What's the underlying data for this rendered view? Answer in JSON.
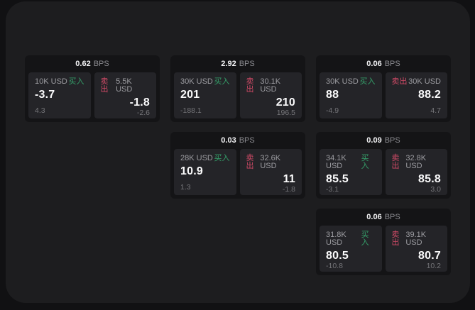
{
  "labels": {
    "buy": "买入",
    "sell": "卖出",
    "bps": "BPS"
  },
  "colors": {
    "background_outer": "#111113",
    "background_panel": "#1d1d1f",
    "card_background": "#141416",
    "subpanel_background": "#242428",
    "buy_accent": "#35a06a",
    "sell_accent": "#cf4a66",
    "primary_text": "#fafafb",
    "muted_text": "#9c9ca1"
  },
  "cards": [
    {
      "row": "1",
      "col": "1",
      "bps": "0.62",
      "buy": {
        "amount": "10K USD",
        "price": "-3.7",
        "delta": "4.3"
      },
      "sell": {
        "amount": "5.5K USD",
        "price": "-1.8",
        "delta": "-2.6"
      }
    },
    {
      "row": "1",
      "col": "2",
      "bps": "2.92",
      "buy": {
        "amount": "30K USD",
        "price": "201",
        "delta": "-188.1"
      },
      "sell": {
        "amount": "30.1K USD",
        "price": "210",
        "delta": "196.5"
      }
    },
    {
      "row": "1",
      "col": "3",
      "bps": "0.06",
      "buy": {
        "amount": "30K USD",
        "price": "88",
        "delta": "-4.9"
      },
      "sell": {
        "amount": "30K USD",
        "price": "88.2",
        "delta": "4.7"
      }
    },
    {
      "row": "2",
      "col": "2",
      "bps": "0.03",
      "buy": {
        "amount": "28K USD",
        "price": "10.9",
        "delta": "1.3"
      },
      "sell": {
        "amount": "32.6K USD",
        "price": "11",
        "delta": "-1.8"
      }
    },
    {
      "row": "2",
      "col": "3",
      "bps": "0.09",
      "buy": {
        "amount": "34.1K USD",
        "price": "85.5",
        "delta": "-3.1"
      },
      "sell": {
        "amount": "32.8K USD",
        "price": "85.8",
        "delta": "3.0"
      }
    },
    {
      "row": "3",
      "col": "3",
      "bps": "0.06",
      "buy": {
        "amount": "31.8K USD",
        "price": "80.5",
        "delta": "-10.8"
      },
      "sell": {
        "amount": "39.1K USD",
        "price": "80.7",
        "delta": "10.2"
      }
    }
  ]
}
